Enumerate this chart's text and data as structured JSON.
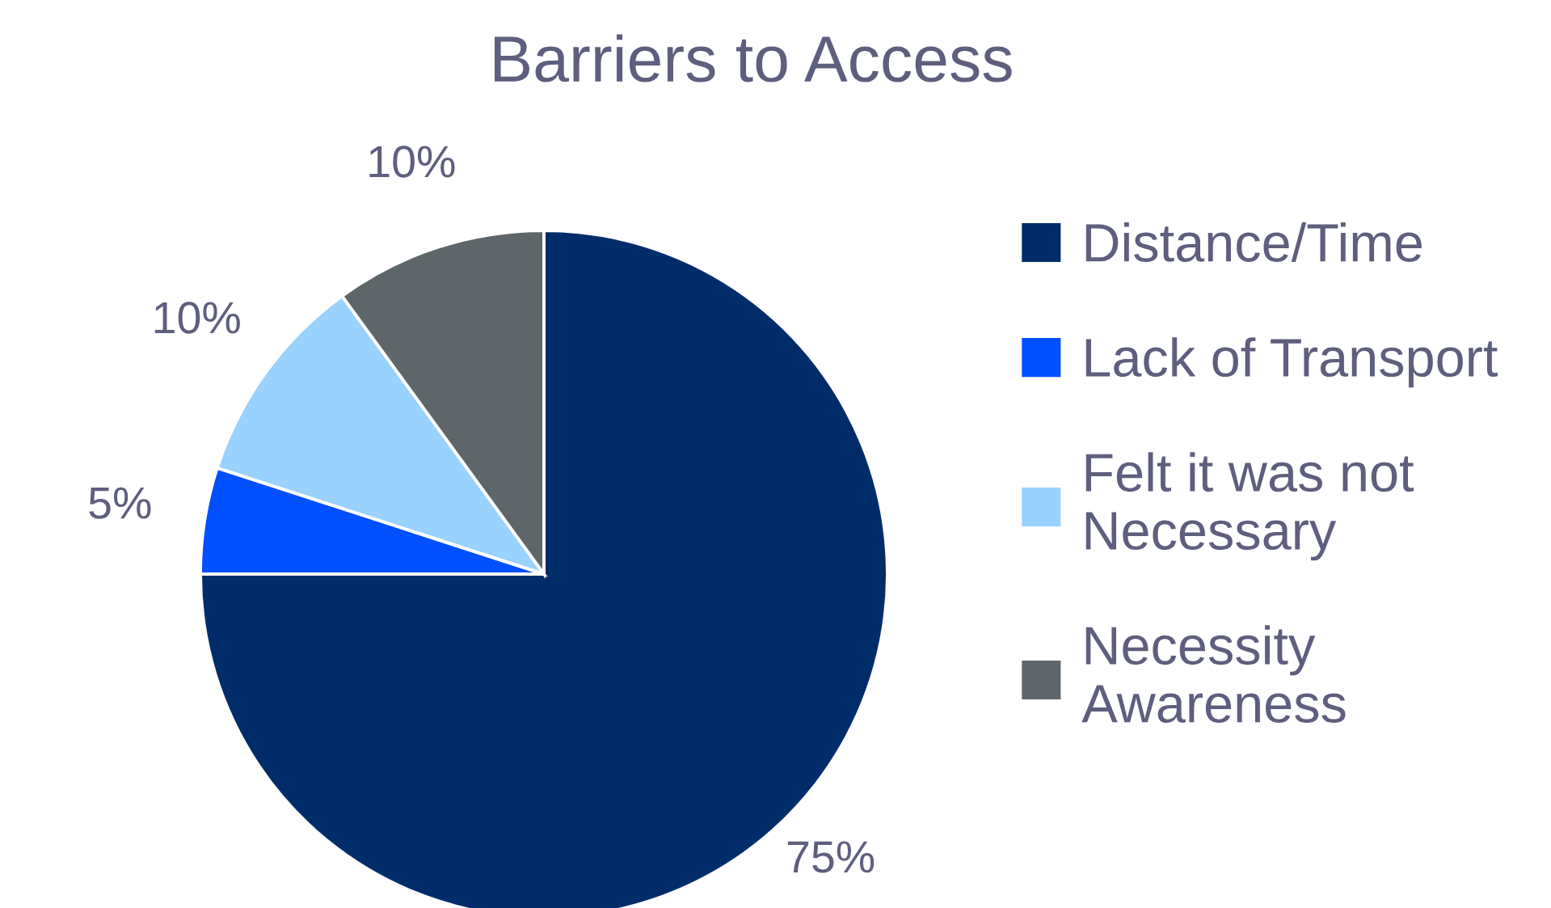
{
  "chart_data": {
    "type": "pie",
    "title": "Barriers to Access",
    "categories": [
      "Distance/Time",
      "Lack of Transport",
      "Felt it was not Necessary",
      "Necessity Awareness"
    ],
    "values": [
      75,
      5,
      10,
      10
    ],
    "colors": [
      "#002d6a",
      "#0050ff",
      "#99d1ff",
      "#5f6669"
    ],
    "value_labels": [
      "75%",
      "5%",
      "10%",
      "10%"
    ],
    "legend": "right"
  }
}
